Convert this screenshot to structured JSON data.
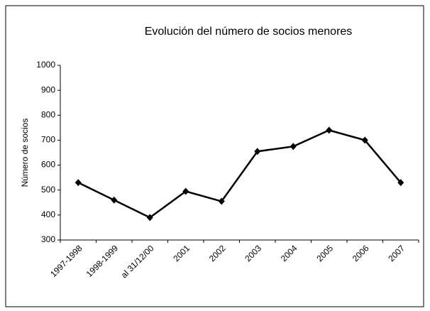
{
  "chart_data": {
    "type": "line",
    "title": "Evolución del número de socios menores",
    "y_label": "Número de socios",
    "categories": [
      "1997-1998",
      "1998-1999",
      "al 31/12/00",
      "2001",
      "2002",
      "2003",
      "2004",
      "2005",
      "2006",
      "2007"
    ],
    "series": [
      {
        "name": "Número de socios",
        "color": "#000000",
        "values": [
          530,
          460,
          390,
          495,
          455,
          655,
          675,
          740,
          700,
          530
        ]
      }
    ],
    "ylim": [
      300,
      1000
    ],
    "yticks": [
      300,
      400,
      500,
      600,
      700,
      800,
      900,
      1000
    ],
    "grid": false
  }
}
